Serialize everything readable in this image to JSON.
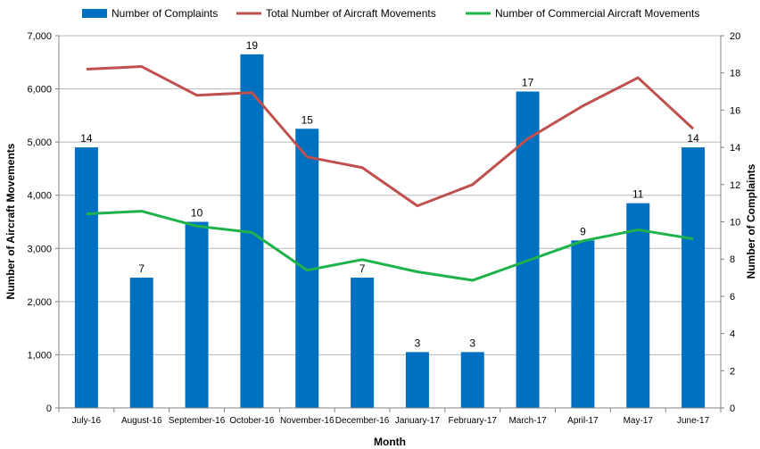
{
  "chart_data": {
    "type": "bar",
    "title": "",
    "xlabel": "Month",
    "ylabel_left": "Number of Aircraft Movements",
    "ylabel_right": "Number of Complaints",
    "categories": [
      "July-16",
      "August-16",
      "September-16",
      "October-16",
      "November-16",
      "December-16",
      "January-17",
      "February-17",
      "March-17",
      "April-17",
      "May-17",
      "June-17"
    ],
    "ylim_left": [
      0,
      7000
    ],
    "ylim_right": [
      0,
      20
    ],
    "yticks_left": [
      "0",
      "1,000",
      "2,000",
      "3,000",
      "4,000",
      "5,000",
      "6,000",
      "7,000"
    ],
    "yticks_right": [
      "0",
      "2",
      "4",
      "6",
      "8",
      "10",
      "12",
      "14",
      "16",
      "18",
      "20"
    ],
    "grid": true,
    "legend_position": "top",
    "series": [
      {
        "name": "Number of Complaints",
        "kind": "bar",
        "axis": "right",
        "color": "#0070C0",
        "values": [
          14,
          7,
          10,
          19,
          15,
          7,
          3,
          3,
          17,
          9,
          11,
          14
        ]
      },
      {
        "name": "Total Number of Aircraft Movements",
        "kind": "line",
        "axis": "left",
        "color": "#C0504D",
        "values": [
          6370,
          6420,
          5880,
          5930,
          4720,
          4520,
          3800,
          4200,
          5060,
          5680,
          6210,
          5250
        ]
      },
      {
        "name": "Number of Commercial Aircraft Movements",
        "kind": "line",
        "axis": "left",
        "color": "#1DB34A",
        "values": [
          3650,
          3700,
          3420,
          3300,
          2590,
          2790,
          2560,
          2400,
          2770,
          3140,
          3350,
          3180
        ]
      }
    ]
  }
}
